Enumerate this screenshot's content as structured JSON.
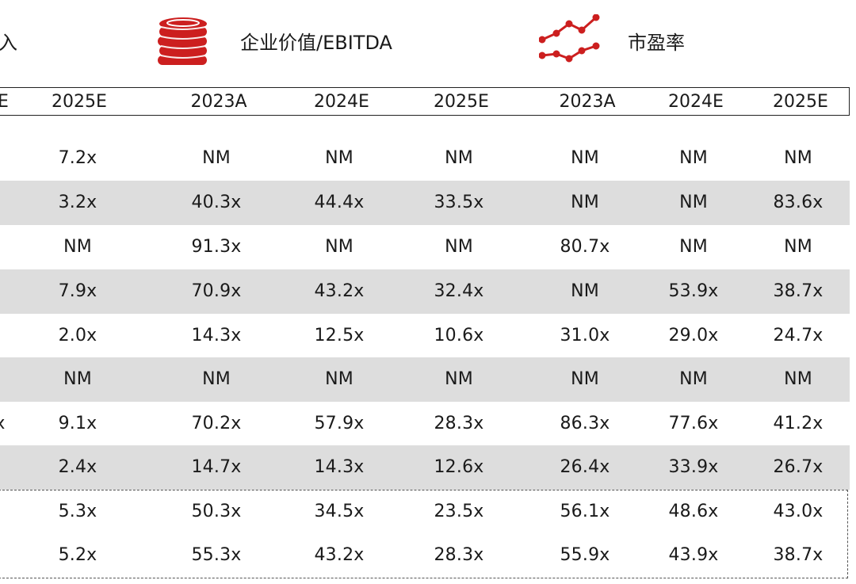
{
  "header": {
    "revenue_label_fragment": "入",
    "ev_ebitda_label": "企业价值/EBITDA",
    "pe_label": "市盈率"
  },
  "years": {
    "partial": "E",
    "c1": "2025E",
    "c2": "2023A",
    "c3": "2024E",
    "c4": "2025E",
    "c5": "2023A",
    "c6": "2024E",
    "c7": "2025E"
  },
  "rows": [
    {
      "partial": "",
      "c1": "7.2x",
      "c2": "NM",
      "c3": "NM",
      "c4": "NM",
      "c5": "NM",
      "c6": "NM",
      "c7": "NM"
    },
    {
      "partial": "",
      "c1": "3.2x",
      "c2": "40.3x",
      "c3": "44.4x",
      "c4": "33.5x",
      "c5": "NM",
      "c6": "NM",
      "c7": "83.6x"
    },
    {
      "partial": "",
      "c1": "NM",
      "c2": "91.3x",
      "c3": "NM",
      "c4": "NM",
      "c5": "80.7x",
      "c6": "NM",
      "c7": "NM"
    },
    {
      "partial": "",
      "c1": "7.9x",
      "c2": "70.9x",
      "c3": "43.2x",
      "c4": "32.4x",
      "c5": "NM",
      "c6": "53.9x",
      "c7": "38.7x"
    },
    {
      "partial": "",
      "c1": "2.0x",
      "c2": "14.3x",
      "c3": "12.5x",
      "c4": "10.6x",
      "c5": "31.0x",
      "c6": "29.0x",
      "c7": "24.7x"
    },
    {
      "partial": "",
      "c1": "NM",
      "c2": "NM",
      "c3": "NM",
      "c4": "NM",
      "c5": "NM",
      "c6": "NM",
      "c7": "NM"
    },
    {
      "partial": "x",
      "c1": "9.1x",
      "c2": "70.2x",
      "c3": "57.9x",
      "c4": "28.3x",
      "c5": "86.3x",
      "c6": "77.6x",
      "c7": "41.2x"
    },
    {
      "partial": "",
      "c1": "2.4x",
      "c2": "14.7x",
      "c3": "14.3x",
      "c4": "12.6x",
      "c5": "26.4x",
      "c6": "33.9x",
      "c7": "26.7x"
    },
    {
      "partial": "",
      "c1": "5.3x",
      "c2": "50.3x",
      "c3": "34.5x",
      "c4": "23.5x",
      "c5": "56.1x",
      "c6": "48.6x",
      "c7": "43.0x"
    },
    {
      "partial": "",
      "c1": "5.2x",
      "c2": "55.3x",
      "c3": "43.2x",
      "c4": "28.3x",
      "c5": "55.9x",
      "c6": "43.9x",
      "c7": "38.7x"
    }
  ],
  "icons": {
    "coins": "coin-stack-icon",
    "trend": "line-trend-icon",
    "accent": "#cc1f1f"
  }
}
